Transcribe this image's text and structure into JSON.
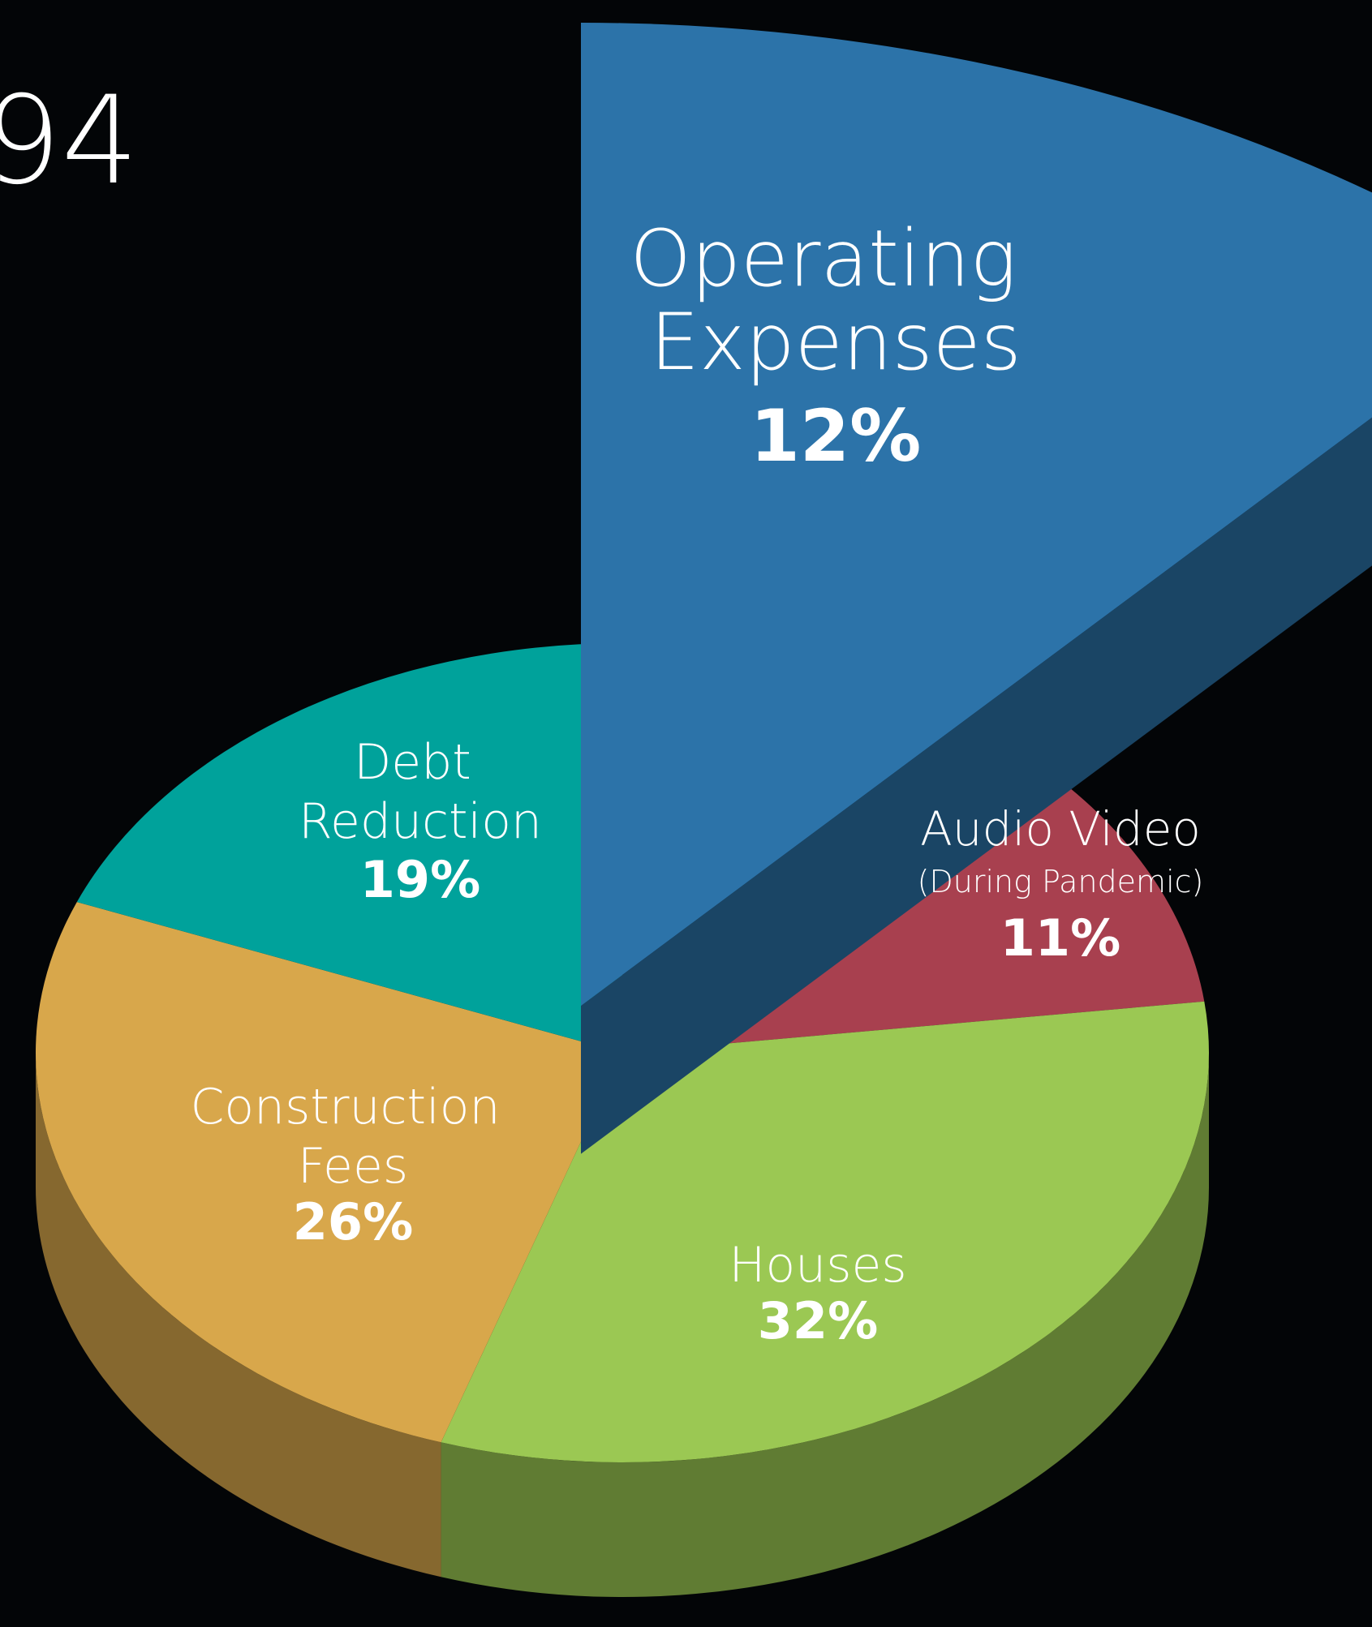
{
  "chart_data": {
    "type": "pie3d",
    "title": "94",
    "categories": [
      "Operating Expenses",
      "Audio Video",
      "Houses",
      "Construction Fees",
      "Debt Reduction"
    ],
    "values": [
      12,
      11,
      32,
      26,
      19
    ],
    "value_labels": [
      "12%",
      "11%",
      "32%",
      "26%",
      "19%"
    ],
    "colors": [
      "#2c73a9",
      "#a8404f",
      "#9bc853",
      "#d8a74b",
      "#00a29b"
    ],
    "annotation": "(During Pandemic)",
    "exploded": [
      true,
      false,
      false,
      false,
      false
    ]
  }
}
